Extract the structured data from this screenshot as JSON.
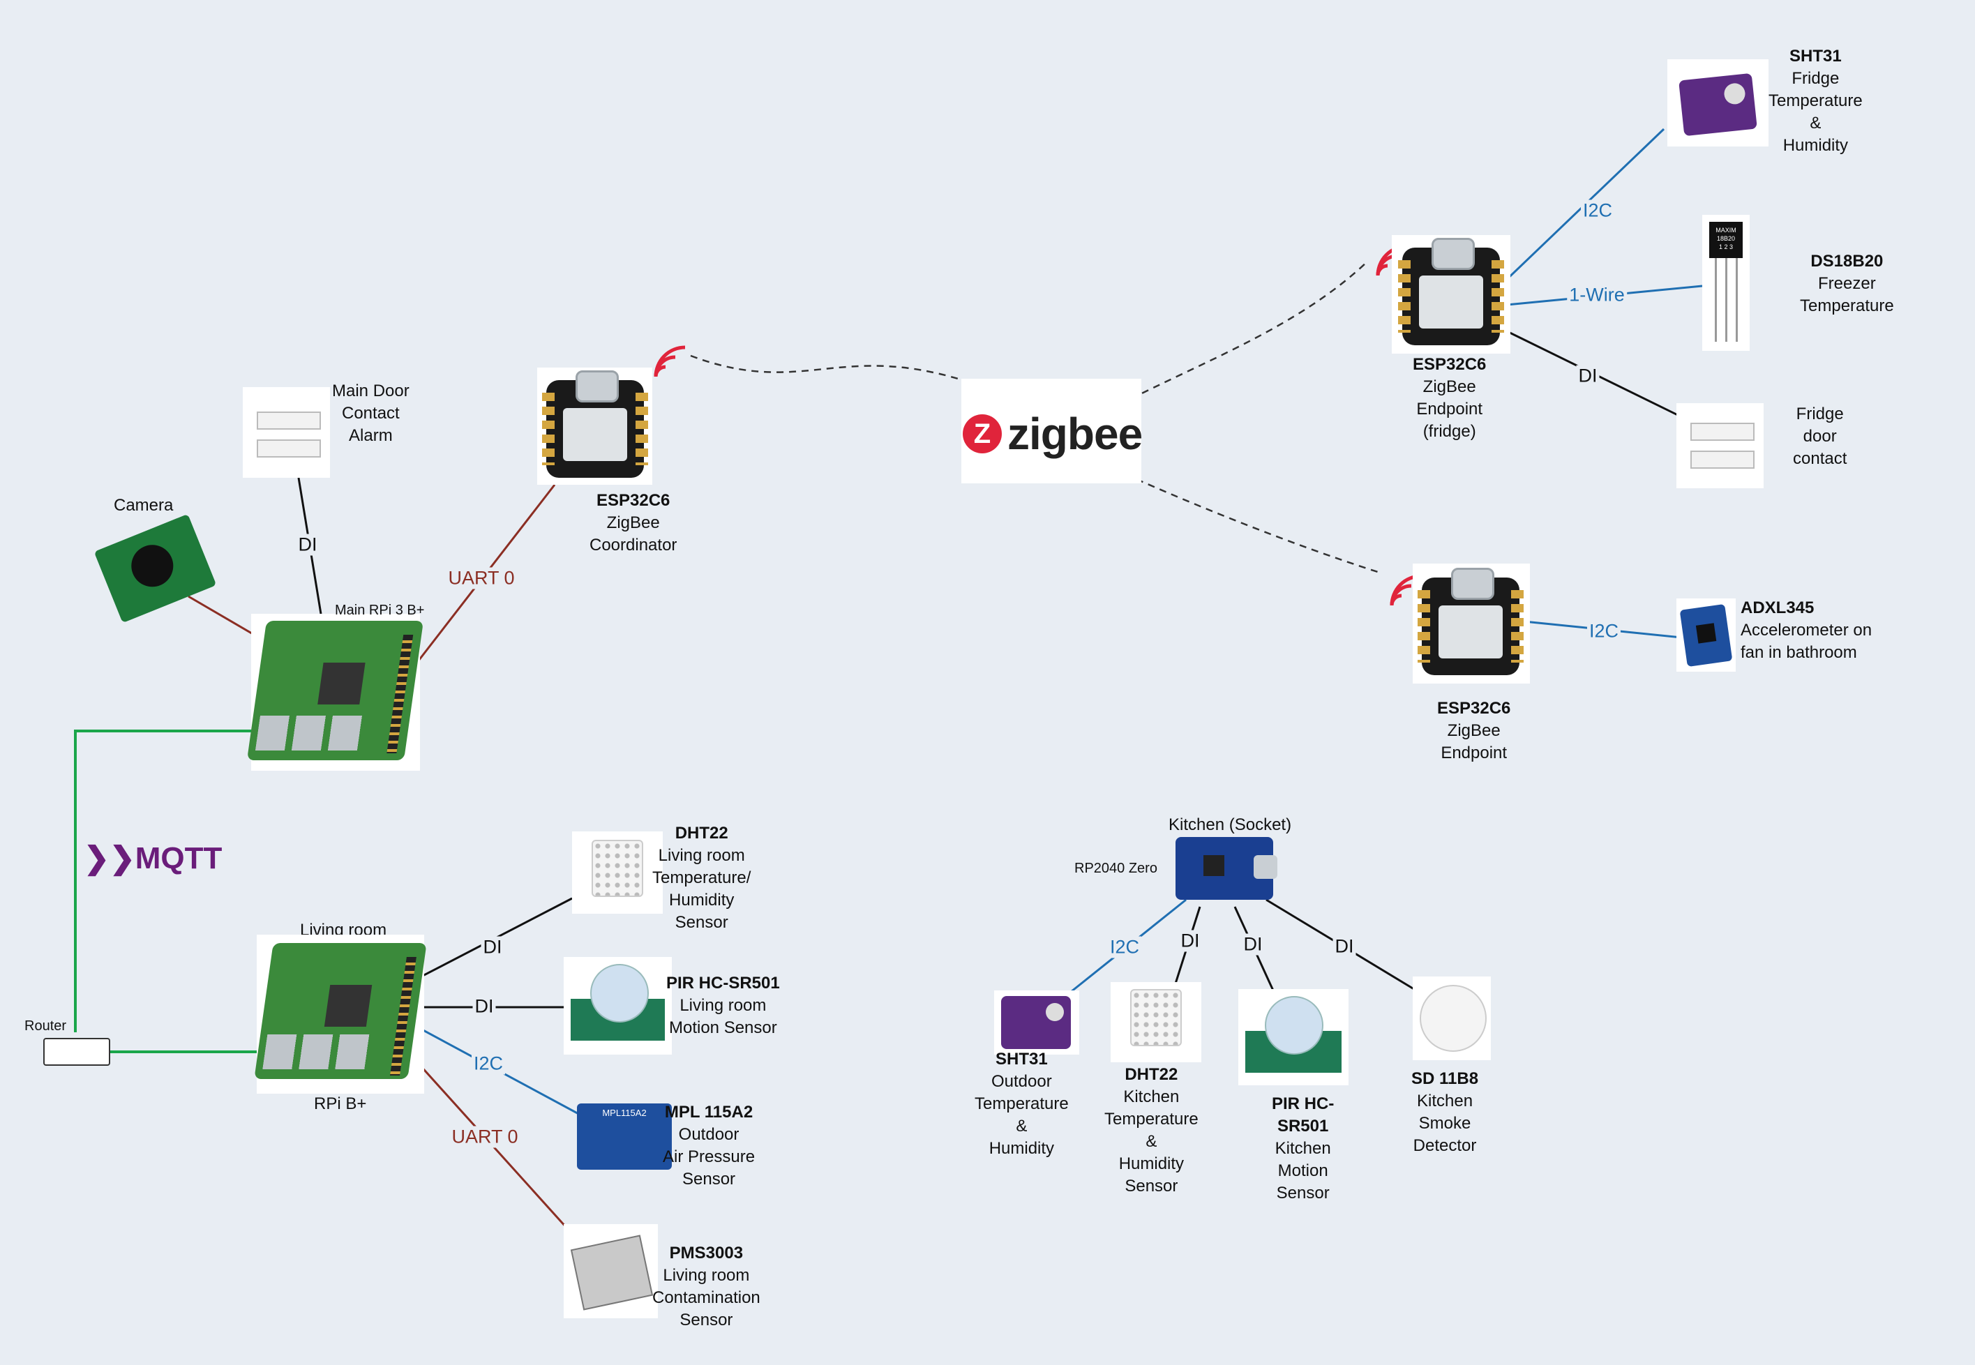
{
  "colors": {
    "zigbee": "#e0243b",
    "uart": "#8b2e23",
    "i2c": "#1f6fb2",
    "mqtt": "#6a1d7a",
    "ethernet": "#1aa64a"
  },
  "devices": {
    "main_pi": {
      "label": "Main RPi 3 B+"
    },
    "camera": {
      "label": "Camera"
    },
    "main_door": {
      "l1": "Main Door",
      "l2": "Contact",
      "l3": "Alarm"
    },
    "coord": {
      "name": "ESP32C6",
      "l1": "ZigBee",
      "l2": "Coordinator"
    },
    "zigbee": {
      "text": "zigbee",
      "icon": "zigbee-logo-icon"
    },
    "mqtt": {
      "text": "MQTT"
    },
    "router": {
      "label": "Router"
    },
    "living_pi": {
      "top": "Living room",
      "bottom": "RPi B+"
    },
    "dht22_lr": {
      "name": "DHT22",
      "l1": "Living room",
      "l2": "Temperature/",
      "l3": "Humidity",
      "l4": "Sensor"
    },
    "pir_lr": {
      "name": "PIR HC-SR501",
      "l1": "Living room",
      "l2": "Motion Sensor"
    },
    "mpl": {
      "name": "MPL 115A2",
      "l1": "Outdoor",
      "l2": "Air Pressure",
      "l3": "Sensor"
    },
    "pms": {
      "name": "PMS3003",
      "l1": "Living room",
      "l2": "Contamination",
      "l3": "Sensor"
    },
    "fridge_ep": {
      "name": "ESP32C6",
      "l1": "ZigBee",
      "l2": "Endpoint",
      "l3": "(fridge)"
    },
    "sht31_f": {
      "name": "SHT31",
      "l1": "Fridge",
      "l2": "Temperature",
      "l3": "&",
      "l4": "Humidity"
    },
    "ds18b20": {
      "name": "DS18B20",
      "l1": "Freezer",
      "l2": "Temperature"
    },
    "fridge_door": {
      "l1": "Fridge",
      "l2": "door",
      "l3": "contact"
    },
    "bath_ep": {
      "name": "ESP32C6",
      "l1": "ZigBee",
      "l2": "Endpoint"
    },
    "adxl": {
      "name": "ADXL345",
      "l1": "Accelerometer  on",
      "l2": "fan in bathroom"
    },
    "kitchen": {
      "title": "Kitchen (Socket)",
      "board": "RP2040 Zero"
    },
    "sht31_o": {
      "name": "SHT31",
      "l1": "Outdoor",
      "l2": "Temperature",
      "l3": "&",
      "l4": "Humidity"
    },
    "dht22_k": {
      "name": "DHT22",
      "l1": "Kitchen",
      "l2": "Temperature",
      "l3": "&",
      "l4": "Humidity",
      "l5": "Sensor"
    },
    "pir_k": {
      "name": "PIR HC-",
      "name2": "SR501",
      "l1": "Kitchen",
      "l2": "Motion",
      "l3": "Sensor"
    },
    "smoke": {
      "name": "SD 11B8",
      "l1": "Kitchen",
      "l2": "Smoke",
      "l3": "Detector"
    },
    "ds_chip": {
      "l1": "MAXIM",
      "l2": "18B20",
      "pins": "1 2 3"
    },
    "mpl_chip": {
      "text": "MPL115A2"
    }
  },
  "wire_labels": {
    "di": "DI",
    "uart": "UART 0",
    "i2c": "I2C",
    "onewire": "1-Wire"
  }
}
